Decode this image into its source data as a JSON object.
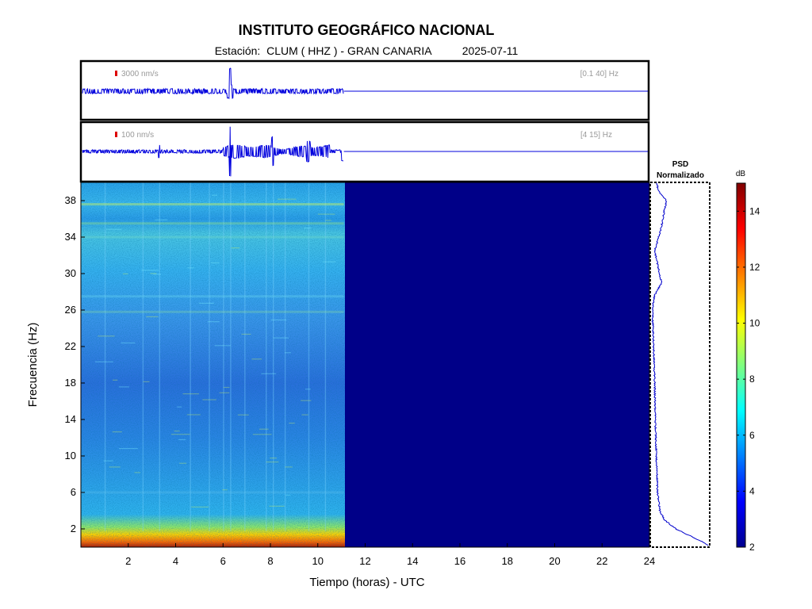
{
  "header": {
    "title": "INSTITUTO GEOGRÁFICO NACIONAL",
    "station_prefix": "Estación:",
    "station": "CLUM ( HHZ ) - GRAN CANARIA",
    "date": "2025-07-11"
  },
  "colors": {
    "trace": "#0000dd",
    "scale_bar": "#dd0000",
    "empty_spectrogram": "#000088",
    "psd_line": "#0000cc"
  },
  "chart_data": [
    {
      "type": "line",
      "name": "seismogram-broadband",
      "scale_label": "3000 nm/s",
      "filter_label": "[0.1 40] Hz",
      "x_range": [
        0,
        24
      ],
      "data_end_hour": 11.1,
      "events_hours": [
        6.3
      ]
    },
    {
      "type": "line",
      "name": "seismogram-filtered",
      "scale_label": "100 nm/s",
      "filter_label": "[4 15] Hz",
      "x_range": [
        0,
        24
      ],
      "data_end_hour": 11.1,
      "events_hours": [
        3.3,
        6.3,
        8.1,
        9.6,
        11.05
      ]
    },
    {
      "type": "heatmap",
      "name": "spectrogram",
      "xlabel": "Tiempo (horas) - UTC",
      "ylabel": "Frecuencia  (Hz)",
      "xlim": [
        0,
        24
      ],
      "ylim": [
        0,
        40
      ],
      "x_ticks": [
        2,
        4,
        6,
        8,
        10,
        12,
        14,
        16,
        18,
        20,
        22,
        24
      ],
      "y_ticks": [
        2,
        6,
        10,
        14,
        18,
        22,
        26,
        30,
        34,
        38
      ],
      "data_end_hour": 11.1,
      "value_range_db": [
        2,
        15
      ]
    },
    {
      "type": "line",
      "name": "psd",
      "title_line1": "PSD",
      "title_line2": "Normalizado",
      "ylim": [
        0,
        40
      ],
      "profile": [
        {
          "f": 0.2,
          "v": 1.0
        },
        {
          "f": 1.0,
          "v": 0.75
        },
        {
          "f": 2.0,
          "v": 0.42
        },
        {
          "f": 3.0,
          "v": 0.22
        },
        {
          "f": 4.0,
          "v": 0.14
        },
        {
          "f": 6.0,
          "v": 0.1
        },
        {
          "f": 8.0,
          "v": 0.09
        },
        {
          "f": 10.0,
          "v": 0.08
        },
        {
          "f": 14.0,
          "v": 0.06
        },
        {
          "f": 18.0,
          "v": 0.05
        },
        {
          "f": 22.0,
          "v": 0.03
        },
        {
          "f": 24.0,
          "v": 0.02
        },
        {
          "f": 26.0,
          "v": 0.01
        },
        {
          "f": 27.5,
          "v": 0.04
        },
        {
          "f": 29.0,
          "v": 0.17
        },
        {
          "f": 31.0,
          "v": 0.1
        },
        {
          "f": 32.5,
          "v": 0.05
        },
        {
          "f": 34.0,
          "v": 0.12
        },
        {
          "f": 35.5,
          "v": 0.18
        },
        {
          "f": 37.0,
          "v": 0.22
        },
        {
          "f": 38.0,
          "v": 0.26
        },
        {
          "f": 39.0,
          "v": 0.12
        },
        {
          "f": 40.0,
          "v": 0.08
        }
      ]
    },
    {
      "type": "heatmap",
      "name": "colorbar",
      "label": "dB",
      "range": [
        2,
        15
      ],
      "ticks": [
        2,
        4,
        6,
        8,
        10,
        12,
        14
      ]
    }
  ]
}
